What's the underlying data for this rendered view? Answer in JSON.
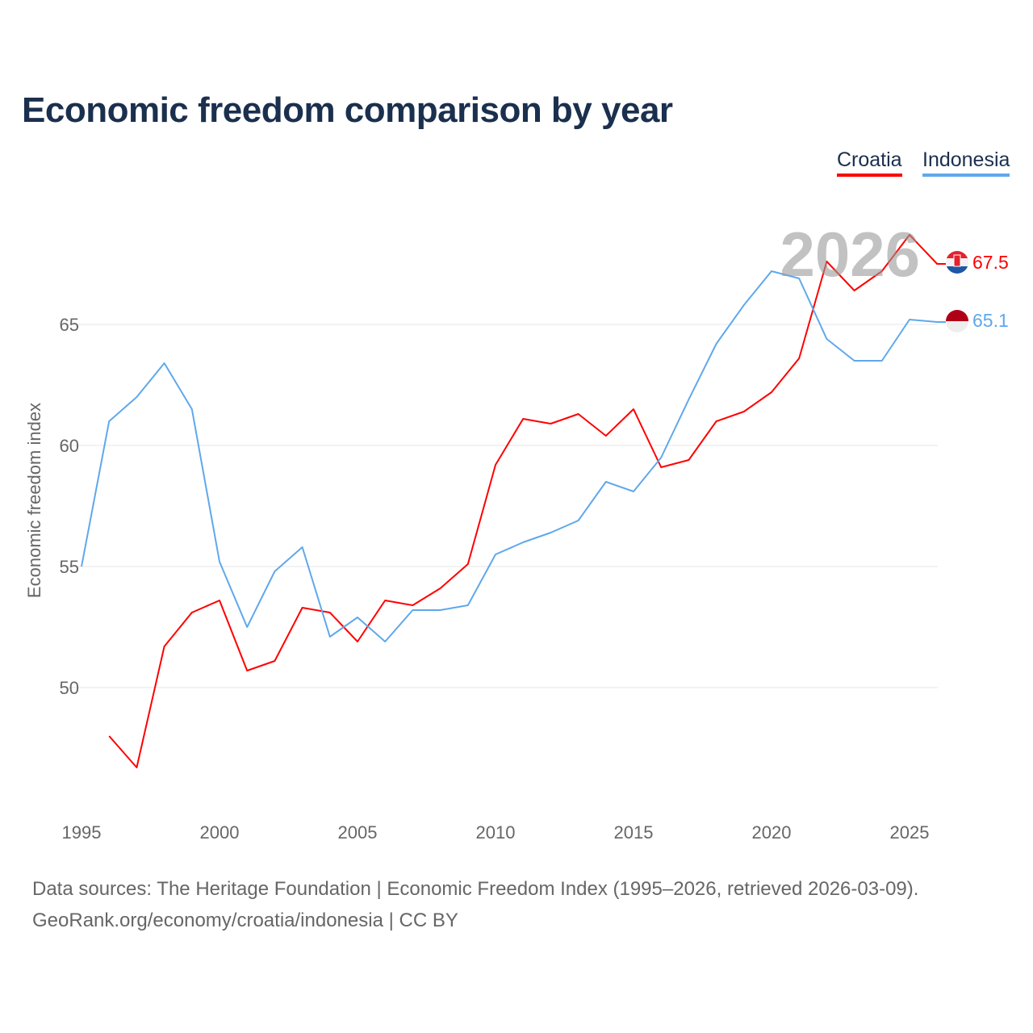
{
  "title": "Economic freedom comparison by year",
  "colors": {
    "croatia": "#ff0000",
    "indonesia": "#5fa8ec"
  },
  "chart_data": {
    "type": "line",
    "title": "Economic freedom comparison by year",
    "xlabel": "",
    "ylabel": "Economic freedom index",
    "xlim": [
      1995,
      2026
    ],
    "ylim": [
      45,
      70
    ],
    "x_ticks": [
      1995,
      2000,
      2005,
      2010,
      2015,
      2020,
      2025
    ],
    "y_ticks": [
      50,
      55,
      60,
      65
    ],
    "grid": true,
    "legend_position": "top-right",
    "year_label": "2026",
    "series": [
      {
        "name": "Croatia",
        "key": "croatia",
        "end_label": "67.5",
        "x": [
          1996,
          1997,
          1998,
          1999,
          2000,
          2001,
          2002,
          2003,
          2004,
          2005,
          2006,
          2007,
          2008,
          2009,
          2010,
          2011,
          2012,
          2013,
          2014,
          2015,
          2016,
          2017,
          2018,
          2019,
          2020,
          2021,
          2022,
          2023,
          2024,
          2025,
          2026
        ],
        "values": [
          48.0,
          46.7,
          51.7,
          53.1,
          53.6,
          50.7,
          51.1,
          53.3,
          53.1,
          51.9,
          53.6,
          53.4,
          54.1,
          55.1,
          59.2,
          61.1,
          60.9,
          61.3,
          60.4,
          61.5,
          59.1,
          59.4,
          61.0,
          61.4,
          62.2,
          63.6,
          67.6,
          66.4,
          67.2,
          68.7,
          67.5
        ]
      },
      {
        "name": "Indonesia",
        "key": "indonesia",
        "end_label": "65.1",
        "x": [
          1995,
          1996,
          1997,
          1998,
          1999,
          2000,
          2001,
          2002,
          2003,
          2004,
          2005,
          2006,
          2007,
          2008,
          2009,
          2010,
          2011,
          2012,
          2013,
          2014,
          2015,
          2016,
          2017,
          2018,
          2019,
          2020,
          2021,
          2022,
          2023,
          2024,
          2025,
          2026
        ],
        "values": [
          55.0,
          61.0,
          62.0,
          63.4,
          61.5,
          55.2,
          52.5,
          54.8,
          55.8,
          52.1,
          52.9,
          51.9,
          53.2,
          53.2,
          53.4,
          55.5,
          56.0,
          56.4,
          56.9,
          58.5,
          58.1,
          59.5,
          61.9,
          64.2,
          65.8,
          67.2,
          66.9,
          64.4,
          63.5,
          63.5,
          65.2,
          65.1
        ]
      }
    ]
  },
  "sources": {
    "line1": "Data sources: The Heritage Foundation | Economic Freedom Index (1995–2026, retrieved 2026-03-09).",
    "line2": "GeoRank.org/economy/croatia/indonesia | CC BY"
  }
}
